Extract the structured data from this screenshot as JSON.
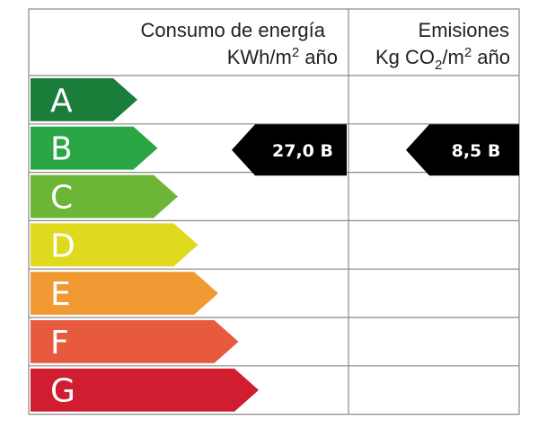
{
  "chart_data": {
    "type": "table",
    "columns": [
      {
        "title_line1": "Consumo de energía",
        "title_line2": {
          "prefix": "KWh/m",
          "sup": "2",
          "suffix": " año"
        },
        "value": "27,0 B",
        "rating": "B"
      },
      {
        "title_line1": "Emisiones",
        "title_line2": {
          "prefix": "Kg CO",
          "sub": "2",
          "mid": "/m",
          "sup": "2",
          "suffix": " año"
        },
        "value": "8,5 B",
        "rating": "B"
      }
    ],
    "classes": [
      {
        "letter": "A",
        "color": "#1a7d3a"
      },
      {
        "letter": "B",
        "color": "#2aa744"
      },
      {
        "letter": "C",
        "color": "#6cb537"
      },
      {
        "letter": "D",
        "color": "#e0da1f"
      },
      {
        "letter": "E",
        "color": "#f19a33"
      },
      {
        "letter": "F",
        "color": "#e85a3e"
      },
      {
        "letter": "G",
        "color": "#d01d30"
      }
    ],
    "badge_color": "#000000",
    "grid_color": "#888888"
  }
}
